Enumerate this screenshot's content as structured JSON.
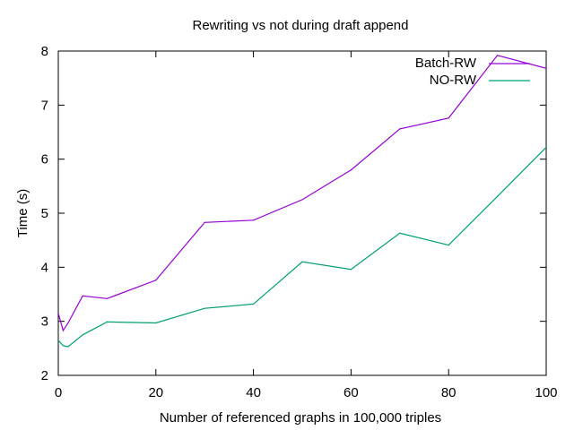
{
  "chart_data": {
    "type": "line",
    "title": "Rewriting vs not during draft append",
    "xlabel": "Number of referenced graphs in 100,000 triples",
    "ylabel": "Time (s)",
    "xlim": [
      0,
      100
    ],
    "ylim": [
      2,
      8
    ],
    "xticks": [
      0,
      20,
      40,
      60,
      80,
      100
    ],
    "yticks": [
      2,
      3,
      4,
      5,
      6,
      7,
      8
    ],
    "grid": false,
    "legend_position": "top-right",
    "series": [
      {
        "name": "Batch-RW",
        "color": "#9400d3",
        "points": [
          [
            0,
            3.15
          ],
          [
            1,
            2.83
          ],
          [
            2,
            2.97
          ],
          [
            5,
            3.47
          ],
          [
            10,
            3.42
          ],
          [
            20,
            3.76
          ],
          [
            30,
            4.83
          ],
          [
            40,
            4.87
          ],
          [
            50,
            5.25
          ],
          [
            60,
            5.8
          ],
          [
            70,
            6.56
          ],
          [
            80,
            6.76
          ],
          [
            90,
            7.92
          ],
          [
            100,
            7.68
          ]
        ]
      },
      {
        "name": "NO-RW",
        "color": "#009e73",
        "points": [
          [
            0,
            2.65
          ],
          [
            1,
            2.55
          ],
          [
            2,
            2.53
          ],
          [
            5,
            2.75
          ],
          [
            10,
            2.99
          ],
          [
            20,
            2.97
          ],
          [
            30,
            3.24
          ],
          [
            40,
            3.32
          ],
          [
            50,
            4.1
          ],
          [
            60,
            3.96
          ],
          [
            70,
            4.63
          ],
          [
            80,
            4.41
          ],
          [
            90,
            5.31
          ],
          [
            100,
            6.22
          ]
        ]
      }
    ]
  }
}
